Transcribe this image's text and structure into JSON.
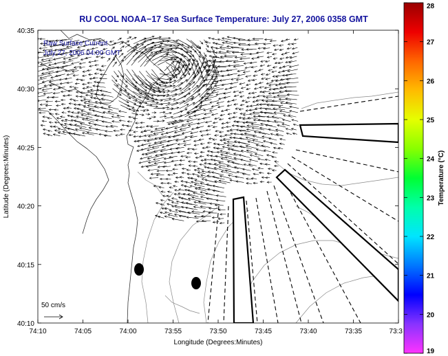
{
  "chart_data": {
    "type": "vector-map",
    "title": "RU COOL  NOAA−17  Sea Surface Temperature:  July 27, 2006 0358 GMT",
    "legend": [
      "Raw Surface Current",
      "July 27, 2006 04:00 GMT"
    ],
    "xlabel": "Longitude (Degrees:Minutes)",
    "ylabel": "Latitude (Degrees:Minutes)",
    "x_ticks": [
      "74:10",
      "74:05",
      "74:00",
      "73:55",
      "73:50",
      "73:45",
      "73:40",
      "73:35",
      "73:3"
    ],
    "y_ticks": [
      "40:35",
      "40:30",
      "40:25",
      "40:20",
      "40:15",
      "40:10"
    ],
    "xlim_minutes_west": [
      -250,
      -210
    ],
    "ylim_minutes_north": [
      2410,
      2435
    ],
    "scale_label": "50 cm/s",
    "colorbar": {
      "label": "Temperature (°C)",
      "ticks": [
        "28",
        "27",
        "26",
        "25",
        "24",
        "23",
        "22",
        "21",
        "20",
        "19"
      ],
      "range": [
        19,
        28
      ],
      "colors": [
        "#ff33ff",
        "#8833ff",
        "#0000ff",
        "#0077ff",
        "#00e5ff",
        "#00ffaa",
        "#00ff33",
        "#88ff00",
        "#e5ff00",
        "#ffbb00",
        "#ff6600",
        "#ee0000",
        "#990000"
      ]
    },
    "colors": {
      "title": "#14149e",
      "legend": "#14149e",
      "vectors": "#000000",
      "contours": "#888888",
      "coast": "#333333"
    }
  }
}
